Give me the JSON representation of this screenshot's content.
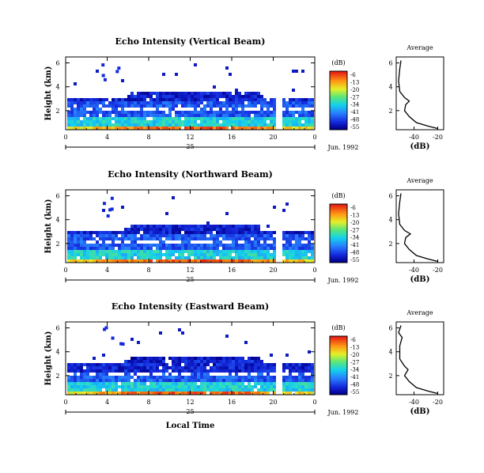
{
  "chart_data": [
    {
      "type": "heatmap",
      "title": "Echo Intensity (Vertical Beam)",
      "ylabel": "Height (km)",
      "xticks": [
        "0",
        "4",
        "8",
        "12",
        "16",
        "20",
        "0"
      ],
      "yticks": [
        "2",
        "4",
        "6"
      ],
      "ylim": [
        0.4,
        6.5
      ],
      "xlim": [
        0,
        24
      ],
      "date_tick": "25",
      "date_label": "Jun. 1992",
      "colorbar": {
        "unit": "(dB)",
        "ticks": [
          "-6",
          "-13",
          "-20",
          "-27",
          "-34",
          "-41",
          "-48",
          "-55"
        ]
      },
      "layers": [
        {
          "from_km": 0.4,
          "to_km": 0.8,
          "level_db": -13
        },
        {
          "from_km": 0.8,
          "to_km": 1.6,
          "level_db": -34
        },
        {
          "from_km": 1.6,
          "to_km": 2.8,
          "level_db": -45
        },
        {
          "from_km": 2.8,
          "to_km": 3.6,
          "level_db": -50
        }
      ],
      "data_gap_hours": [
        20.0,
        20.8
      ],
      "average": {
        "title": "Average",
        "xlabel": "(dB)",
        "xticks": [
          "-40",
          "-20"
        ],
        "yticks": [
          "2",
          "4",
          "6"
        ],
        "profile": [
          [
            0.5,
            -20
          ],
          [
            0.7,
            -28
          ],
          [
            1.0,
            -38
          ],
          [
            1.5,
            -44
          ],
          [
            2.0,
            -48
          ],
          [
            2.5,
            -47
          ],
          [
            2.8,
            -44
          ],
          [
            3.1,
            -48
          ],
          [
            3.6,
            -52
          ],
          [
            4.5,
            -53
          ],
          [
            5.5,
            -52
          ],
          [
            6.2,
            -51
          ]
        ]
      }
    },
    {
      "type": "heatmap",
      "title": "Echo Intensity (Northward Beam)",
      "ylabel": "Height (km)",
      "xticks": [
        "0",
        "4",
        "8",
        "12",
        "16",
        "20",
        "0"
      ],
      "yticks": [
        "2",
        "4",
        "6"
      ],
      "ylim": [
        0.4,
        6.5
      ],
      "xlim": [
        0,
        24
      ],
      "date_tick": "25",
      "date_label": "Jun. 1992",
      "colorbar": {
        "unit": "(dB)",
        "ticks": [
          "-6",
          "-13",
          "-20",
          "-27",
          "-34",
          "-41",
          "-48",
          "-55"
        ]
      },
      "layers": [
        {
          "from_km": 0.4,
          "to_km": 0.8,
          "level_db": -13
        },
        {
          "from_km": 0.8,
          "to_km": 1.6,
          "level_db": -34
        },
        {
          "from_km": 1.6,
          "to_km": 2.8,
          "level_db": -45
        },
        {
          "from_km": 2.8,
          "to_km": 3.6,
          "level_db": -50
        }
      ],
      "data_gap_hours": [
        20.0,
        20.8
      ],
      "average": {
        "title": "Average",
        "xlabel": "(dB)",
        "xticks": [
          "-40",
          "-20"
        ],
        "yticks": [
          "2",
          "4",
          "6"
        ],
        "profile": [
          [
            0.5,
            -20
          ],
          [
            0.7,
            -28
          ],
          [
            1.0,
            -38
          ],
          [
            1.5,
            -44
          ],
          [
            2.0,
            -48
          ],
          [
            2.5,
            -47
          ],
          [
            2.8,
            -43
          ],
          [
            3.1,
            -48
          ],
          [
            3.6,
            -52
          ],
          [
            4.5,
            -53
          ],
          [
            5.5,
            -52
          ],
          [
            6.2,
            -51
          ]
        ]
      }
    },
    {
      "type": "heatmap",
      "title": "Echo Intensity (Eastward Beam)",
      "ylabel": "Height (km)",
      "xlabel": "Local Time",
      "xticks": [
        "0",
        "4",
        "8",
        "12",
        "16",
        "20",
        "0"
      ],
      "yticks": [
        "2",
        "4",
        "6"
      ],
      "ylim": [
        0.4,
        6.5
      ],
      "xlim": [
        0,
        24
      ],
      "date_tick": "25",
      "date_label": "Jun. 1992",
      "colorbar": {
        "unit": "(dB)",
        "ticks": [
          "-6",
          "-13",
          "-20",
          "-27",
          "-34",
          "-41",
          "-48",
          "-55"
        ]
      },
      "layers": [
        {
          "from_km": 0.4,
          "to_km": 0.8,
          "level_db": -13
        },
        {
          "from_km": 0.8,
          "to_km": 1.6,
          "level_db": -34
        },
        {
          "from_km": 1.6,
          "to_km": 2.5,
          "level_db": -45
        },
        {
          "from_km": 2.5,
          "to_km": 3.4,
          "level_db": -50
        }
      ],
      "data_gap_hours": [
        20.0,
        20.8
      ],
      "average": {
        "title": "Average",
        "xlabel": "(dB)",
        "xticks": [
          "-40",
          "-20"
        ],
        "yticks": [
          "2",
          "4",
          "6"
        ],
        "profile": [
          [
            0.5,
            -20
          ],
          [
            0.7,
            -28
          ],
          [
            1.0,
            -38
          ],
          [
            1.5,
            -44
          ],
          [
            2.0,
            -48
          ],
          [
            2.5,
            -45
          ],
          [
            2.8,
            -48
          ],
          [
            3.4,
            -52
          ],
          [
            4.5,
            -52
          ],
          [
            5.2,
            -50
          ],
          [
            5.6,
            -53
          ],
          [
            6.2,
            -51
          ]
        ]
      }
    }
  ]
}
